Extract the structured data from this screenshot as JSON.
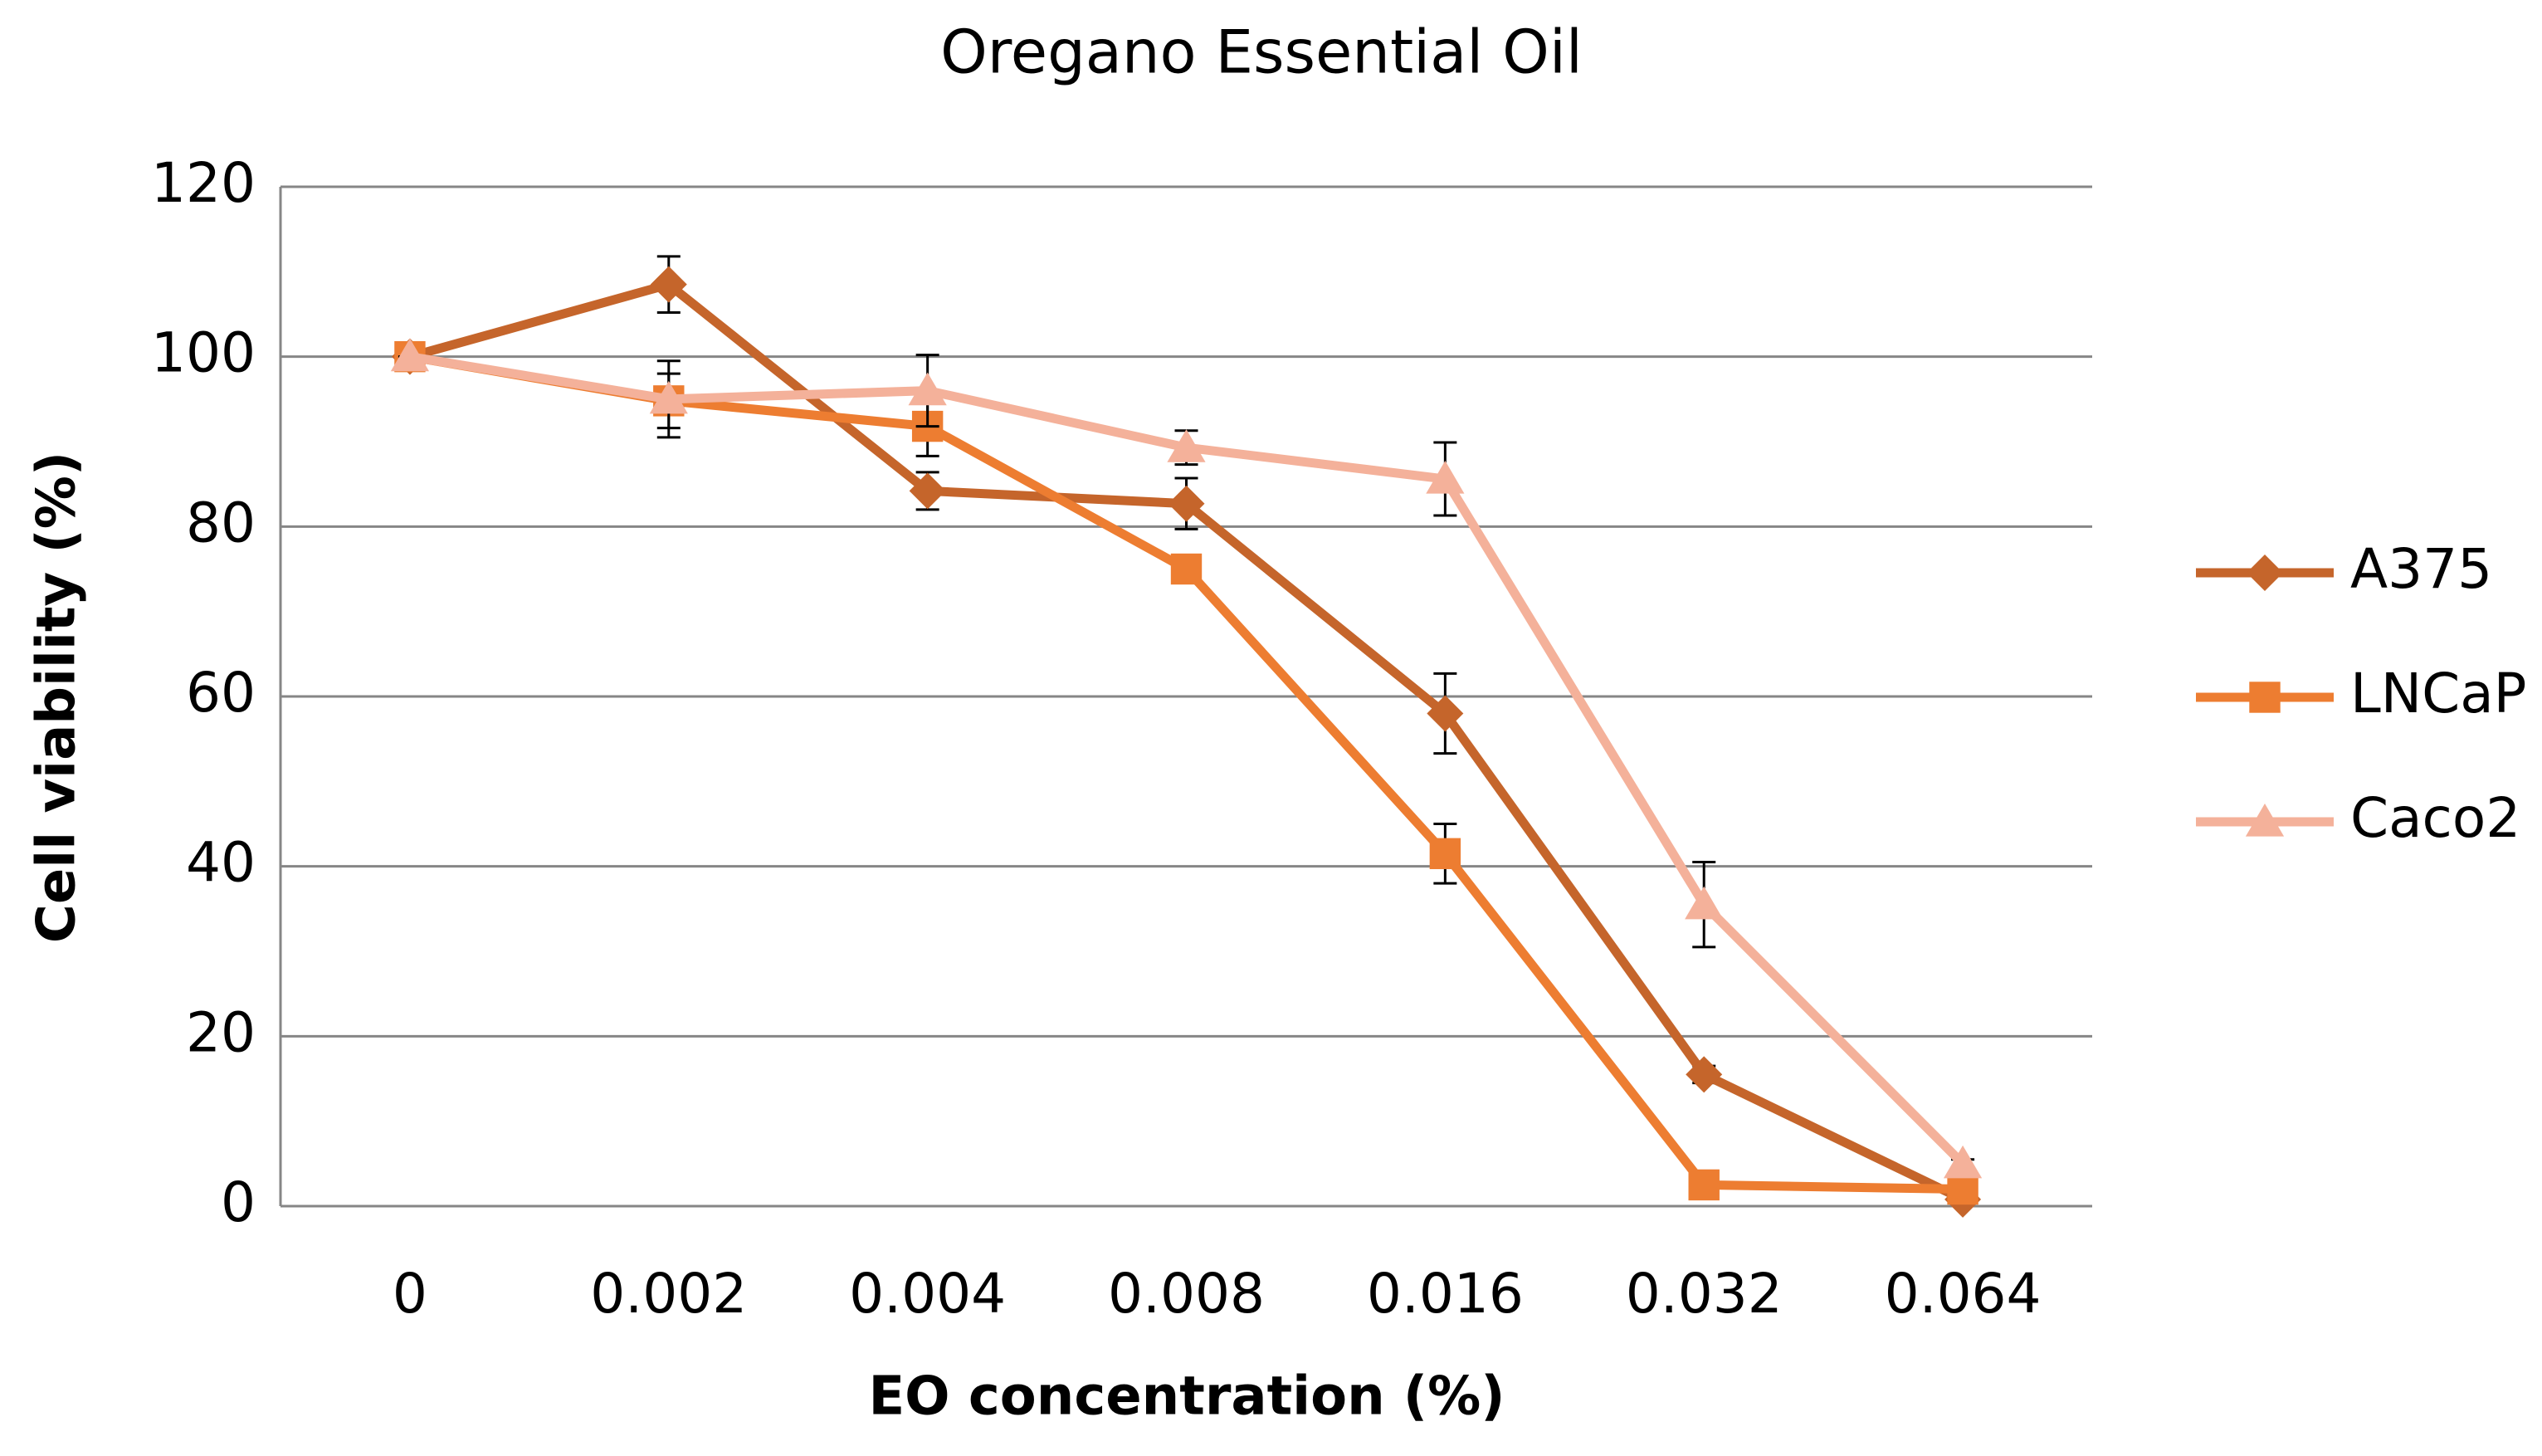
{
  "chart_data": {
    "type": "line",
    "title": "Oregano Essential Oil",
    "x_label": "EO concentration (%)",
    "y_label": "Cell viability (%)",
    "categories": [
      "0",
      "0.002",
      "0.004",
      "0.008",
      "0.016",
      "0.032",
      "0.064"
    ],
    "ylim": [
      0,
      120
    ],
    "yticks": [
      0,
      20,
      40,
      60,
      80,
      100,
      120
    ],
    "grid": true,
    "legend": "right",
    "series": [
      {
        "name": "A375",
        "color": "#c5652b",
        "marker": "diamond",
        "values": [
          100,
          108.5,
          84.2,
          82.7,
          58,
          15.5,
          0.8
        ],
        "errors": [
          0,
          3.3,
          2.2,
          3,
          4.7,
          1,
          0.5
        ]
      },
      {
        "name": "LNCaP",
        "color": "#ed7d31",
        "marker": "square",
        "values": [
          100,
          94.8,
          91.8,
          75,
          41.5,
          2.5,
          2
        ],
        "errors": [
          0,
          3.2,
          3.5,
          1,
          3.5,
          0.5,
          0.5
        ]
      },
      {
        "name": "Caco2",
        "color": "#f4b19a",
        "marker": "triangle",
        "values": [
          100,
          95,
          96,
          89.3,
          85.6,
          35.5,
          5
        ],
        "errors": [
          0,
          4.5,
          4.2,
          2,
          4.3,
          5,
          0.5
        ]
      }
    ]
  }
}
